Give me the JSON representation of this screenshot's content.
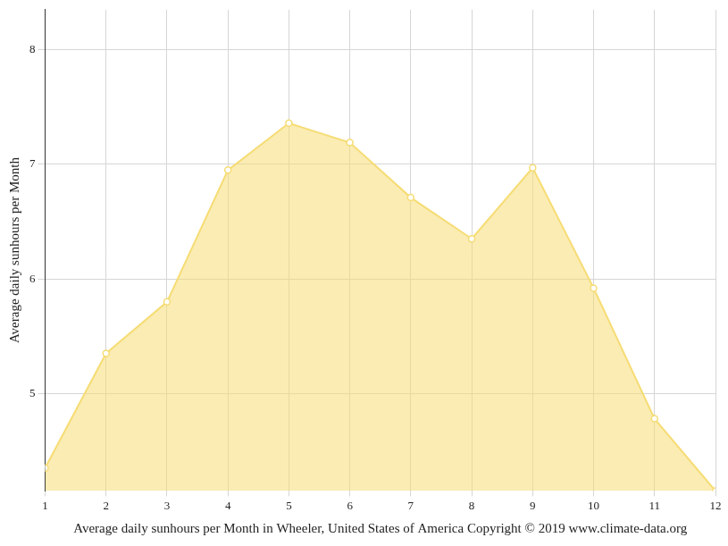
{
  "chart_data": {
    "type": "line",
    "x_label": "Average daily sunhours per Month in Wheeler, United States of America Copyright © 2019 www.climate-data.org",
    "y_label": "Average daily sunhours per Month",
    "x": [
      1,
      2,
      3,
      4,
      5,
      6,
      7,
      8,
      9,
      10,
      11,
      12
    ],
    "values": [
      4.35,
      5.35,
      5.8,
      6.95,
      7.36,
      7.19,
      6.71,
      6.35,
      6.97,
      5.92,
      4.78,
      4.15
    ],
    "color": "#f6dc74",
    "marker": "circle",
    "xlim": [
      1,
      12
    ],
    "xticks": [
      1,
      2,
      3,
      4,
      5,
      6,
      7,
      8,
      9,
      10,
      11,
      12
    ],
    "ylim": [
      4.15,
      8.35
    ],
    "yticks": [
      5,
      6,
      7,
      8
    ],
    "grid": true
  }
}
